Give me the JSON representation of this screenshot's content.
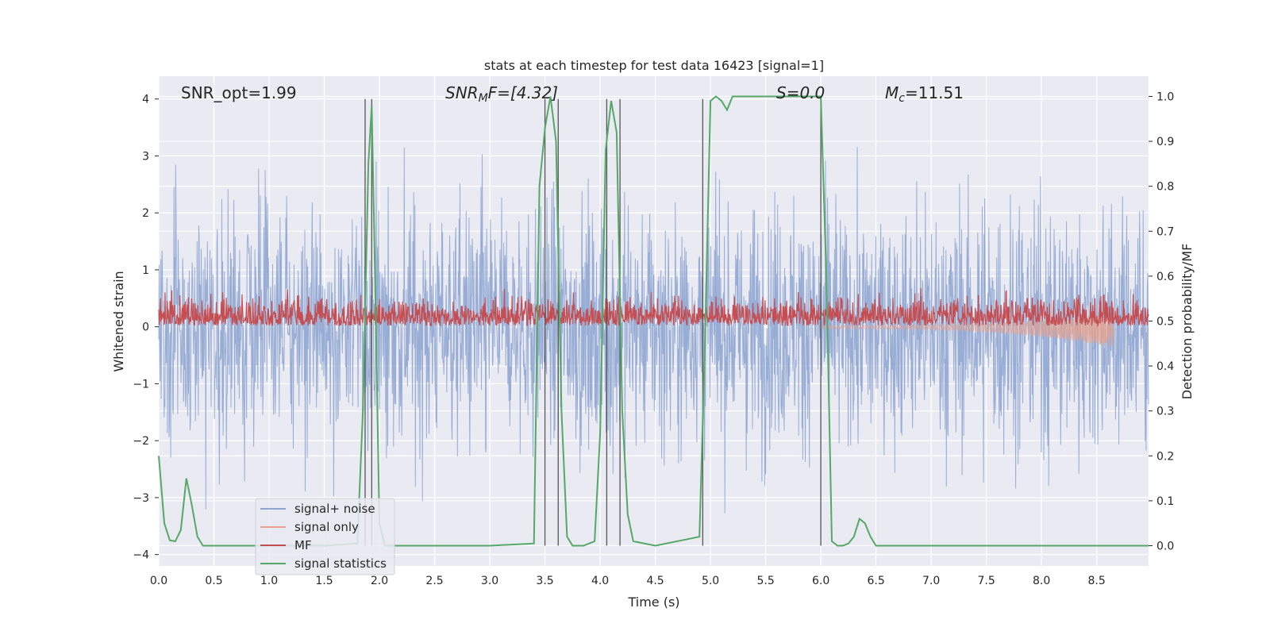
{
  "chart_data": {
    "type": "line",
    "title": "stats at each timestep for test data 16423 [signal=1]",
    "xlabel": "Time (s)",
    "ylabel_left": "Whitened strain",
    "ylabel_right": "Detection probability/MF",
    "xlim": [
      0.0,
      8.97
    ],
    "ylim_left": [
      -4.2,
      4.4
    ],
    "ylim_right": [
      -0.045,
      1.045
    ],
    "x_ticks": [
      "0.0",
      "0.5",
      "1.0",
      "1.5",
      "2.0",
      "2.5",
      "3.0",
      "3.5",
      "4.0",
      "4.5",
      "5.0",
      "5.5",
      "6.0",
      "6.5",
      "7.0",
      "7.5",
      "8.0",
      "8.5"
    ],
    "y_ticks_left": [
      "4",
      "3",
      "2",
      "1",
      "0",
      "−1",
      "−2",
      "−3",
      "−4"
    ],
    "y_ticks_right": [
      "1.0",
      "0.9",
      "0.8",
      "0.7",
      "0.6",
      "0.5",
      "0.4",
      "0.3",
      "0.2",
      "0.1",
      "0.0"
    ],
    "grid": true,
    "legend_position": "lower-left",
    "annotations": {
      "snr_opt": "SNR_opt=1.99",
      "snr_mf_main": "SNR",
      "snr_mf_sub": "M",
      "snr_mf_rest": "F=[4.32]",
      "s_stat": "S=0.0",
      "mc_main": "M",
      "mc_sub": "c",
      "mc_rest": "=11.51"
    },
    "series": [
      {
        "name": "signal+ noise",
        "color": "#8fa6d1",
        "axis": "left",
        "description_range": [
          -3.6,
          4.0
        ]
      },
      {
        "name": "signal only",
        "color": "#e8a08a",
        "axis": "left",
        "chirp": {
          "start": 6.0,
          "end": 8.65,
          "final_amplitude": -0.3
        }
      },
      {
        "name": "MF",
        "color": "#c44e52",
        "axis": "left",
        "range": [
          0.0,
          0.95
        ]
      },
      {
        "name": "signal statistics",
        "color": "#55a868",
        "axis": "right",
        "x": [
          0.0,
          0.05,
          0.1,
          0.15,
          0.2,
          0.25,
          0.3,
          0.35,
          0.4,
          0.45,
          0.5,
          1.0,
          1.5,
          1.8,
          1.85,
          1.9,
          1.93,
          1.96,
          2.0,
          2.05,
          2.1,
          2.5,
          3.0,
          3.4,
          3.45,
          3.5,
          3.55,
          3.6,
          3.65,
          3.7,
          3.75,
          3.8,
          3.85,
          3.9,
          3.95,
          4.0,
          4.05,
          4.1,
          4.15,
          4.2,
          4.25,
          4.3,
          4.5,
          4.9,
          4.95,
          5.0,
          5.05,
          5.1,
          5.15,
          5.2,
          5.25,
          5.3,
          5.5,
          5.8,
          6.0,
          6.05,
          6.1,
          6.15,
          6.2,
          6.25,
          6.3,
          6.35,
          6.4,
          6.45,
          6.5,
          6.55,
          6.6,
          7.0,
          8.0,
          8.97
        ],
        "values": [
          0.2,
          0.05,
          0.012,
          0.01,
          0.035,
          0.15,
          0.09,
          0.02,
          0.0,
          0.0,
          0.0,
          0.0,
          0.0,
          0.005,
          0.3,
          0.85,
          0.98,
          0.6,
          0.05,
          0.0,
          0.0,
          0.0,
          0.0,
          0.005,
          0.8,
          0.93,
          1.0,
          0.9,
          0.3,
          0.02,
          0.0,
          0.0,
          0.0,
          0.005,
          0.01,
          0.25,
          0.88,
          0.99,
          0.92,
          0.3,
          0.07,
          0.01,
          0.0,
          0.02,
          0.45,
          0.99,
          1.0,
          0.99,
          0.97,
          1.0,
          1.0,
          1.0,
          1.0,
          1.0,
          1.0,
          0.6,
          0.01,
          0.0,
          0.0,
          0.005,
          0.02,
          0.06,
          0.05,
          0.02,
          0.0,
          0.0,
          0.0,
          0.0,
          0.0,
          0.0
        ]
      }
    ],
    "vertical_lines": [
      1.87,
      1.93,
      3.5,
      3.62,
      4.06,
      4.18,
      4.93,
      6.0
    ]
  }
}
